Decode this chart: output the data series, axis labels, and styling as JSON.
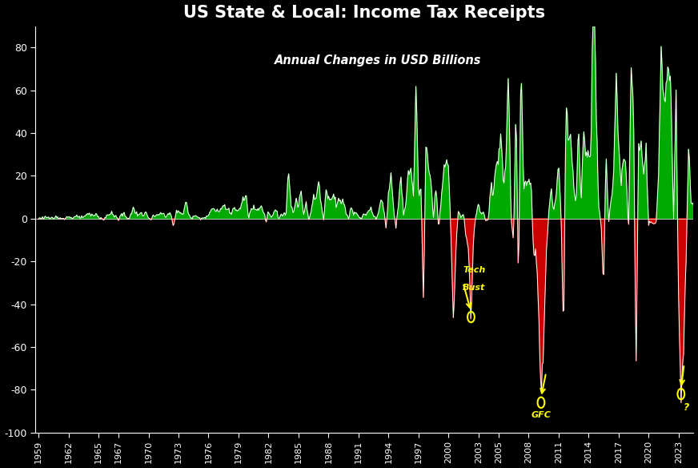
{
  "title": "US State & Local: Income Tax Receipts",
  "subtitle": "Annual Changes in USD Billions",
  "background_color": "#000000",
  "text_color": "#ffffff",
  "green_color": "#00aa00",
  "red_color": "#cc0000",
  "line_color": "#ffffff",
  "annotation_color": "#ffff00",
  "ylim": [
    -100,
    90
  ],
  "yticks": [
    -100,
    -80,
    -60,
    -40,
    -20,
    0,
    20,
    40,
    60,
    80
  ],
  "xtick_years": [
    1959,
    1962,
    1965,
    1967,
    1970,
    1973,
    1976,
    1979,
    1982,
    1985,
    1988,
    1991,
    1994,
    1997,
    2000,
    2003,
    2005,
    2008,
    2011,
    2014,
    2017,
    2020,
    2023
  ],
  "tech_bust_year_idx": 172,
  "tech_bust_value": -46.0,
  "tech_bust_label1": "Tech",
  "tech_bust_label2": "Bust",
  "gfc_value": -86.0,
  "gfc_label": "GFC",
  "question_value": -82.0,
  "question_label": "?"
}
